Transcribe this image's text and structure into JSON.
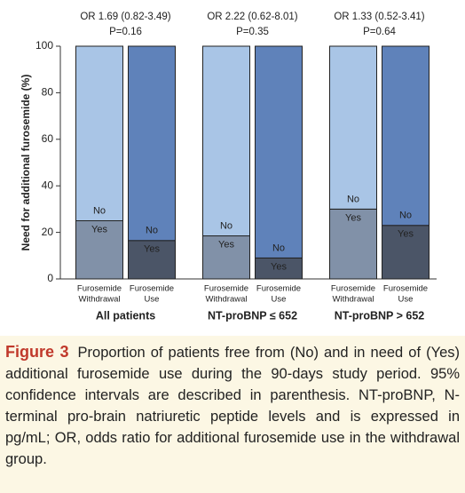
{
  "chart_data": {
    "type": "stacked-bar",
    "ylabel": "Need for additional furosemide (%)",
    "ylim": [
      0,
      100
    ],
    "yticks": [
      0,
      20,
      40,
      60,
      80,
      100
    ],
    "categories": [
      [
        "Furosemide",
        "Withdrawal"
      ],
      [
        "Furosemide",
        "Use"
      ],
      [
        "Furosemide",
        "Withdrawal"
      ],
      [
        "Furosemide",
        "Use"
      ],
      [
        "Furosemide",
        "Withdrawal"
      ],
      [
        "Furosemide",
        "Use"
      ]
    ],
    "groups": [
      "All patients",
      "NT-proBNP ≤ 652",
      "NT-proBNP > 652"
    ],
    "annotations": [
      [
        "OR 1.69 (0.82-3.49)",
        "P=0.16"
      ],
      [
        "OR 2.22 (0.62-8.01)",
        "P=0.35"
      ],
      [
        "OR 1.33 (0.52-3.41)",
        "P=0.64"
      ]
    ],
    "series": [
      {
        "name": "Yes",
        "colors": [
          "#8191a8",
          "#4b5567",
          "#8191a8",
          "#4b5567",
          "#8191a8",
          "#4b5567"
        ],
        "values": [
          25,
          16.5,
          18.5,
          9,
          30,
          23
        ]
      },
      {
        "name": "No",
        "colors": [
          "#a9c5e6",
          "#5f82ba",
          "#a9c5e6",
          "#5f82ba",
          "#a9c5e6",
          "#5f82ba"
        ],
        "values": [
          75,
          83.5,
          81.5,
          91,
          70,
          77
        ]
      }
    ]
  },
  "caption": {
    "label": "Figure 3",
    "text": "Proportion of patients free from (No) and in need of (Yes) additional furosemide use during the 90-days study period. 95% confidence intervals are described in parenthesis. NT-proBNP, N-terminal pro-brain natriuretic peptide levels and is expressed in pg/mL; OR, odds ratio for additional furosemide use in the withdrawal group."
  }
}
